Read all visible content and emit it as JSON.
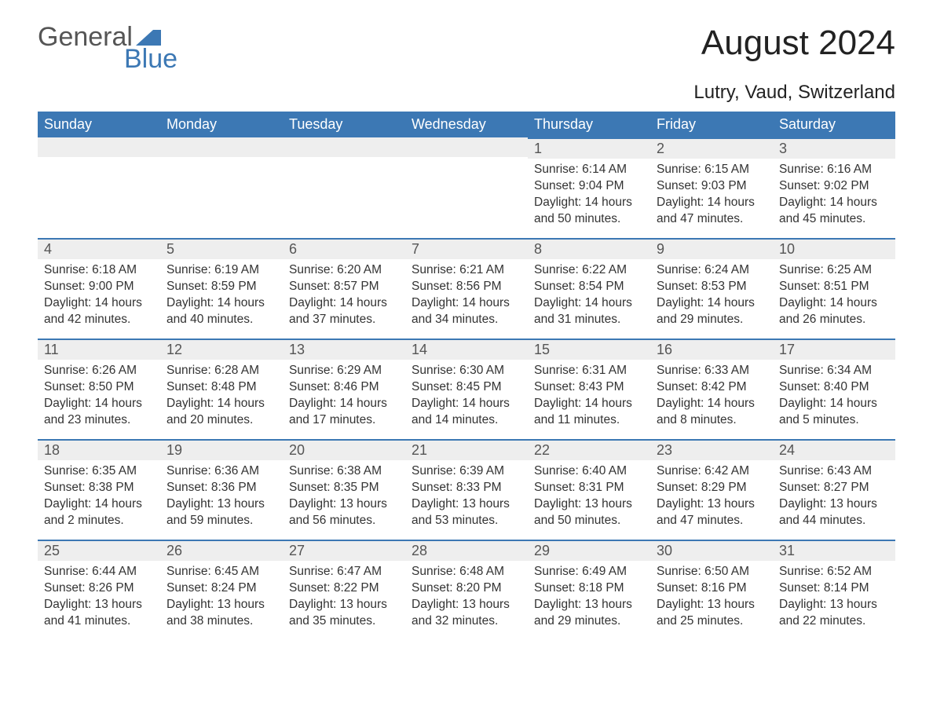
{
  "logo": {
    "word1": "General",
    "word2": "Blue",
    "brand_color": "#3c78b4",
    "text_color": "#555555"
  },
  "title": "August 2024",
  "subtitle": "Lutry, Vaud, Switzerland",
  "colors": {
    "header_bg": "#3c78b4",
    "header_text": "#ffffff",
    "daynum_bg": "#eeeeee",
    "daynum_border": "#3c78b4",
    "body_text": "#333333",
    "page_bg": "#ffffff"
  },
  "fontsize": {
    "title": 44,
    "subtitle": 24,
    "weekday": 18,
    "daynum": 18,
    "body": 15.5
  },
  "weekdays": [
    "Sunday",
    "Monday",
    "Tuesday",
    "Wednesday",
    "Thursday",
    "Friday",
    "Saturday"
  ],
  "leading_blanks": 4,
  "days": [
    {
      "n": "1",
      "sunrise": "6:14 AM",
      "sunset": "9:04 PM",
      "daylight": "14 hours and 50 minutes."
    },
    {
      "n": "2",
      "sunrise": "6:15 AM",
      "sunset": "9:03 PM",
      "daylight": "14 hours and 47 minutes."
    },
    {
      "n": "3",
      "sunrise": "6:16 AM",
      "sunset": "9:02 PM",
      "daylight": "14 hours and 45 minutes."
    },
    {
      "n": "4",
      "sunrise": "6:18 AM",
      "sunset": "9:00 PM",
      "daylight": "14 hours and 42 minutes."
    },
    {
      "n": "5",
      "sunrise": "6:19 AM",
      "sunset": "8:59 PM",
      "daylight": "14 hours and 40 minutes."
    },
    {
      "n": "6",
      "sunrise": "6:20 AM",
      "sunset": "8:57 PM",
      "daylight": "14 hours and 37 minutes."
    },
    {
      "n": "7",
      "sunrise": "6:21 AM",
      "sunset": "8:56 PM",
      "daylight": "14 hours and 34 minutes."
    },
    {
      "n": "8",
      "sunrise": "6:22 AM",
      "sunset": "8:54 PM",
      "daylight": "14 hours and 31 minutes."
    },
    {
      "n": "9",
      "sunrise": "6:24 AM",
      "sunset": "8:53 PM",
      "daylight": "14 hours and 29 minutes."
    },
    {
      "n": "10",
      "sunrise": "6:25 AM",
      "sunset": "8:51 PM",
      "daylight": "14 hours and 26 minutes."
    },
    {
      "n": "11",
      "sunrise": "6:26 AM",
      "sunset": "8:50 PM",
      "daylight": "14 hours and 23 minutes."
    },
    {
      "n": "12",
      "sunrise": "6:28 AM",
      "sunset": "8:48 PM",
      "daylight": "14 hours and 20 minutes."
    },
    {
      "n": "13",
      "sunrise": "6:29 AM",
      "sunset": "8:46 PM",
      "daylight": "14 hours and 17 minutes."
    },
    {
      "n": "14",
      "sunrise": "6:30 AM",
      "sunset": "8:45 PM",
      "daylight": "14 hours and 14 minutes."
    },
    {
      "n": "15",
      "sunrise": "6:31 AM",
      "sunset": "8:43 PM",
      "daylight": "14 hours and 11 minutes."
    },
    {
      "n": "16",
      "sunrise": "6:33 AM",
      "sunset": "8:42 PM",
      "daylight": "14 hours and 8 minutes."
    },
    {
      "n": "17",
      "sunrise": "6:34 AM",
      "sunset": "8:40 PM",
      "daylight": "14 hours and 5 minutes."
    },
    {
      "n": "18",
      "sunrise": "6:35 AM",
      "sunset": "8:38 PM",
      "daylight": "14 hours and 2 minutes."
    },
    {
      "n": "19",
      "sunrise": "6:36 AM",
      "sunset": "8:36 PM",
      "daylight": "13 hours and 59 minutes."
    },
    {
      "n": "20",
      "sunrise": "6:38 AM",
      "sunset": "8:35 PM",
      "daylight": "13 hours and 56 minutes."
    },
    {
      "n": "21",
      "sunrise": "6:39 AM",
      "sunset": "8:33 PM",
      "daylight": "13 hours and 53 minutes."
    },
    {
      "n": "22",
      "sunrise": "6:40 AM",
      "sunset": "8:31 PM",
      "daylight": "13 hours and 50 minutes."
    },
    {
      "n": "23",
      "sunrise": "6:42 AM",
      "sunset": "8:29 PM",
      "daylight": "13 hours and 47 minutes."
    },
    {
      "n": "24",
      "sunrise": "6:43 AM",
      "sunset": "8:27 PM",
      "daylight": "13 hours and 44 minutes."
    },
    {
      "n": "25",
      "sunrise": "6:44 AM",
      "sunset": "8:26 PM",
      "daylight": "13 hours and 41 minutes."
    },
    {
      "n": "26",
      "sunrise": "6:45 AM",
      "sunset": "8:24 PM",
      "daylight": "13 hours and 38 minutes."
    },
    {
      "n": "27",
      "sunrise": "6:47 AM",
      "sunset": "8:22 PM",
      "daylight": "13 hours and 35 minutes."
    },
    {
      "n": "28",
      "sunrise": "6:48 AM",
      "sunset": "8:20 PM",
      "daylight": "13 hours and 32 minutes."
    },
    {
      "n": "29",
      "sunrise": "6:49 AM",
      "sunset": "8:18 PM",
      "daylight": "13 hours and 29 minutes."
    },
    {
      "n": "30",
      "sunrise": "6:50 AM",
      "sunset": "8:16 PM",
      "daylight": "13 hours and 25 minutes."
    },
    {
      "n": "31",
      "sunrise": "6:52 AM",
      "sunset": "8:14 PM",
      "daylight": "13 hours and 22 minutes."
    }
  ],
  "labels": {
    "sunrise": "Sunrise:",
    "sunset": "Sunset:",
    "daylight": "Daylight:"
  }
}
